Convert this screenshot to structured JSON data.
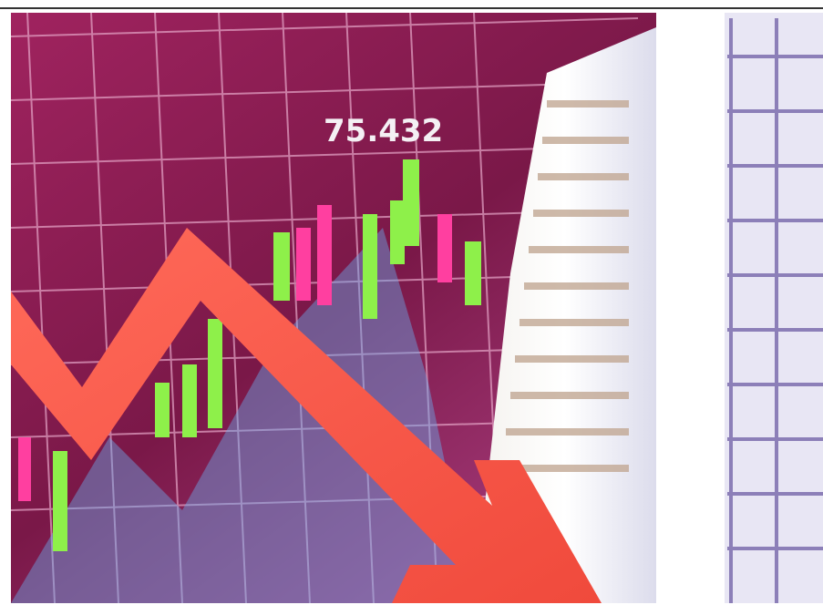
{
  "image": {
    "overlay_text": "75.432"
  }
}
